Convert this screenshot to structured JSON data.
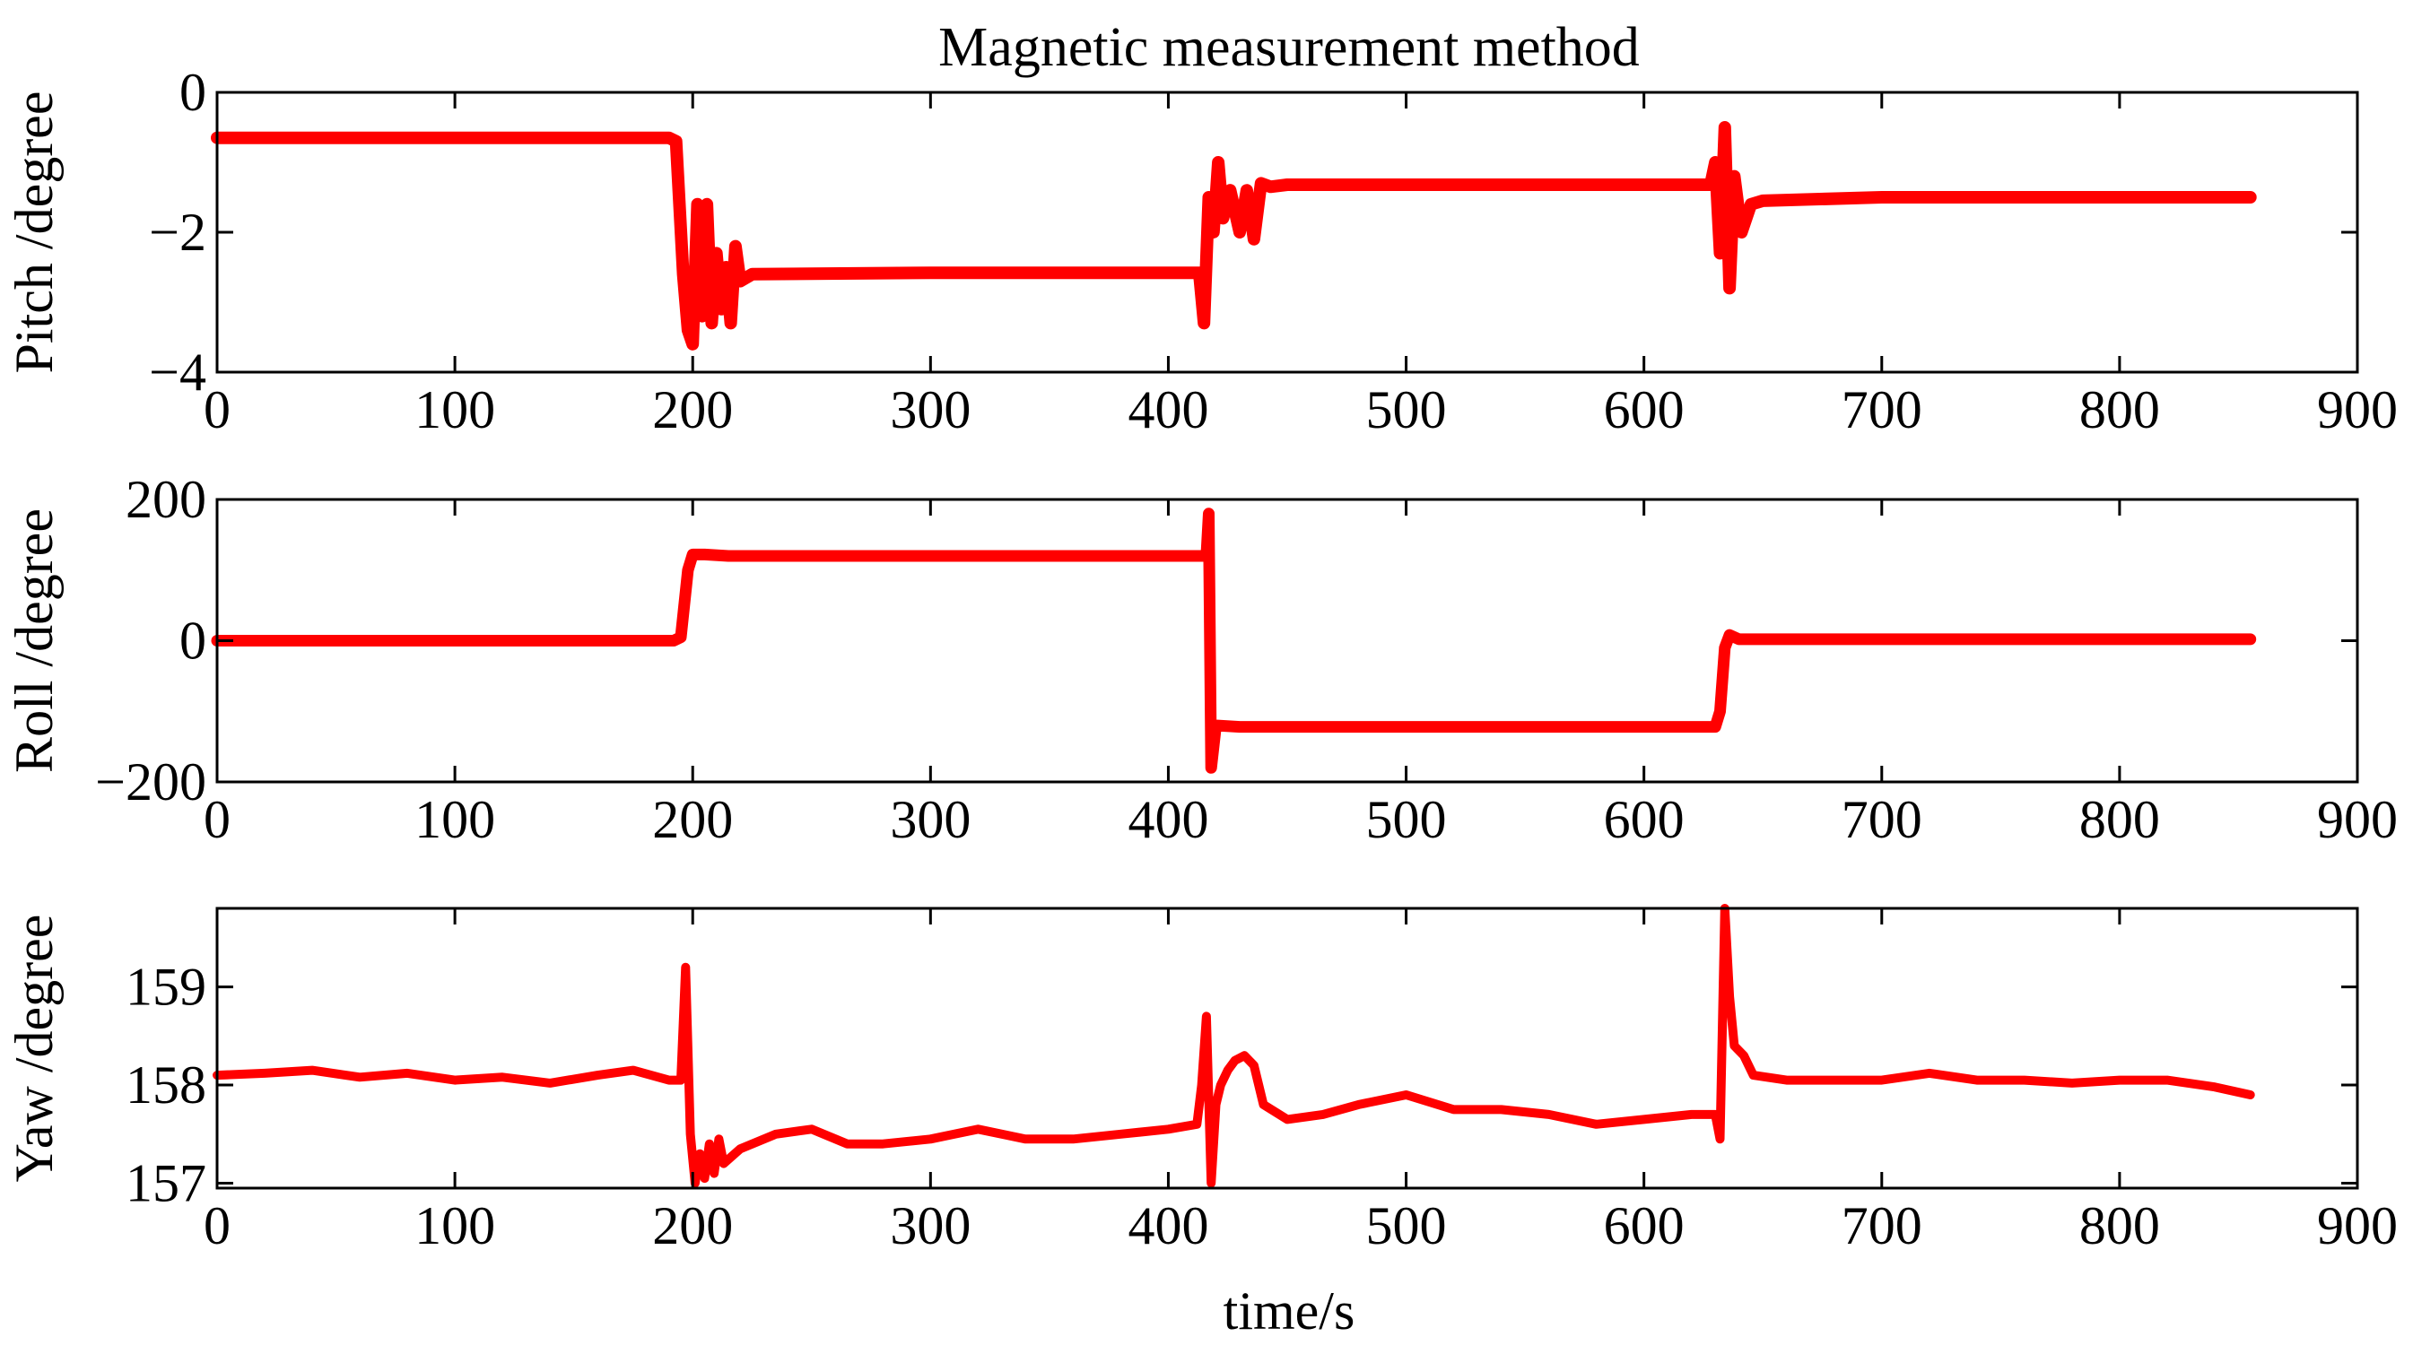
{
  "chart_data": [
    {
      "type": "line",
      "title": "Magnetic measurement method",
      "xlabel": "",
      "ylabel": "Pitch /degree",
      "xlim": [
        0,
        900
      ],
      "ylim": [
        -4,
        0
      ],
      "xticks": [
        "0",
        "100",
        "200",
        "300",
        "400",
        "500",
        "600",
        "700",
        "800",
        "900"
      ],
      "yticks": [
        "0",
        "−2",
        "−4"
      ],
      "ytick_values": [
        0,
        -2,
        -4
      ],
      "series": [
        {
          "name": "Pitch",
          "color": "#ff0000",
          "points": [
            [
              0,
              -0.65
            ],
            [
              100,
              -0.65
            ],
            [
              190,
              -0.65
            ],
            [
              193,
              -0.7
            ],
            [
              196,
              -2.6
            ],
            [
              198,
              -3.4
            ],
            [
              200,
              -3.6
            ],
            [
              202,
              -1.6
            ],
            [
              204,
              -3.2
            ],
            [
              206,
              -1.6
            ],
            [
              208,
              -3.3
            ],
            [
              210,
              -2.3
            ],
            [
              212,
              -3.1
            ],
            [
              214,
              -2.5
            ],
            [
              216,
              -3.3
            ],
            [
              218,
              -2.2
            ],
            [
              220,
              -2.7
            ],
            [
              225,
              -2.6
            ],
            [
              300,
              -2.58
            ],
            [
              400,
              -2.58
            ],
            [
              413,
              -2.58
            ],
            [
              415,
              -3.3
            ],
            [
              417,
              -1.5
            ],
            [
              419,
              -2.0
            ],
            [
              421,
              -1.0
            ],
            [
              423,
              -1.8
            ],
            [
              426,
              -1.4
            ],
            [
              430,
              -2.0
            ],
            [
              433,
              -1.4
            ],
            [
              436,
              -2.1
            ],
            [
              439,
              -1.3
            ],
            [
              443,
              -1.35
            ],
            [
              450,
              -1.32
            ],
            [
              500,
              -1.32
            ],
            [
              600,
              -1.32
            ],
            [
              628,
              -1.32
            ],
            [
              630,
              -1.0
            ],
            [
              632,
              -2.3
            ],
            [
              634,
              -0.5
            ],
            [
              636,
              -2.8
            ],
            [
              638,
              -1.2
            ],
            [
              641,
              -2.0
            ],
            [
              645,
              -1.6
            ],
            [
              650,
              -1.55
            ],
            [
              700,
              -1.5
            ],
            [
              800,
              -1.5
            ],
            [
              855,
              -1.5
            ]
          ]
        }
      ]
    },
    {
      "type": "line",
      "title": "",
      "xlabel": "",
      "ylabel": "Roll /degree",
      "xlim": [
        0,
        900
      ],
      "ylim": [
        -200,
        200
      ],
      "xticks": [
        "0",
        "100",
        "200",
        "300",
        "400",
        "500",
        "600",
        "700",
        "800",
        "900"
      ],
      "yticks": [
        "200",
        "0",
        "−200"
      ],
      "ytick_values": [
        200,
        0,
        -200
      ],
      "series": [
        {
          "name": "Roll",
          "color": "#ff0000",
          "points": [
            [
              0,
              0
            ],
            [
              100,
              0
            ],
            [
              192,
              0
            ],
            [
              195,
              5
            ],
            [
              198,
              100
            ],
            [
              200,
              122
            ],
            [
              205,
              122
            ],
            [
              215,
              120
            ],
            [
              300,
              120
            ],
            [
              400,
              120
            ],
            [
              416,
              120
            ],
            [
              417,
              180
            ],
            [
              418,
              -180
            ],
            [
              420,
              -120
            ],
            [
              430,
              -122
            ],
            [
              500,
              -122
            ],
            [
              600,
              -122
            ],
            [
              630,
              -122
            ],
            [
              632,
              -100
            ],
            [
              634,
              -10
            ],
            [
              636,
              8
            ],
            [
              640,
              2
            ],
            [
              700,
              2
            ],
            [
              800,
              2
            ],
            [
              855,
              2
            ]
          ]
        }
      ]
    },
    {
      "type": "line",
      "title": "",
      "xlabel": "time/s",
      "ylabel": "Yaw /degree",
      "xlim": [
        0,
        900
      ],
      "ylim": [
        156.95,
        159.8
      ],
      "xticks": [
        "0",
        "100",
        "200",
        "300",
        "400",
        "500",
        "600",
        "700",
        "800",
        "900"
      ],
      "yticks": [
        "159",
        "158",
        "157"
      ],
      "ytick_values": [
        159,
        158,
        157
      ],
      "series": [
        {
          "name": "Yaw",
          "color": "#ff0000",
          "points": [
            [
              0,
              158.1
            ],
            [
              20,
              158.12
            ],
            [
              40,
              158.15
            ],
            [
              60,
              158.08
            ],
            [
              80,
              158.12
            ],
            [
              100,
              158.05
            ],
            [
              120,
              158.08
            ],
            [
              140,
              158.02
            ],
            [
              160,
              158.1
            ],
            [
              175,
              158.15
            ],
            [
              190,
              158.05
            ],
            [
              195,
              158.05
            ],
            [
              197,
              159.2
            ],
            [
              199,
              157.5
            ],
            [
              201,
              157.0
            ],
            [
              203,
              157.3
            ],
            [
              205,
              157.05
            ],
            [
              207,
              157.4
            ],
            [
              209,
              157.1
            ],
            [
              211,
              157.45
            ],
            [
              213,
              157.2
            ],
            [
              220,
              157.35
            ],
            [
              235,
              157.5
            ],
            [
              250,
              157.55
            ],
            [
              265,
              157.4
            ],
            [
              280,
              157.4
            ],
            [
              300,
              157.45
            ],
            [
              320,
              157.55
            ],
            [
              340,
              157.45
            ],
            [
              360,
              157.45
            ],
            [
              380,
              157.5
            ],
            [
              400,
              157.55
            ],
            [
              412,
              157.6
            ],
            [
              414,
              158.0
            ],
            [
              416,
              158.7
            ],
            [
              418,
              157.0
            ],
            [
              420,
              157.8
            ],
            [
              422,
              158.0
            ],
            [
              425,
              158.15
            ],
            [
              428,
              158.25
            ],
            [
              432,
              158.3
            ],
            [
              436,
              158.2
            ],
            [
              440,
              157.8
            ],
            [
              450,
              157.65
            ],
            [
              465,
              157.7
            ],
            [
              480,
              157.8
            ],
            [
              500,
              157.9
            ],
            [
              520,
              157.75
            ],
            [
              540,
              157.75
            ],
            [
              560,
              157.7
            ],
            [
              580,
              157.6
            ],
            [
              600,
              157.65
            ],
            [
              620,
              157.7
            ],
            [
              628,
              157.7
            ],
            [
              630,
              157.7
            ],
            [
              632,
              157.45
            ],
            [
              634,
              159.8
            ],
            [
              636,
              158.9
            ],
            [
              638,
              158.4
            ],
            [
              642,
              158.3
            ],
            [
              646,
              158.1
            ],
            [
              660,
              158.05
            ],
            [
              680,
              158.05
            ],
            [
              700,
              158.05
            ],
            [
              720,
              158.12
            ],
            [
              740,
              158.05
            ],
            [
              760,
              158.05
            ],
            [
              780,
              158.02
            ],
            [
              800,
              158.05
            ],
            [
              820,
              158.05
            ],
            [
              840,
              157.98
            ],
            [
              855,
              157.9
            ]
          ]
        }
      ]
    }
  ]
}
